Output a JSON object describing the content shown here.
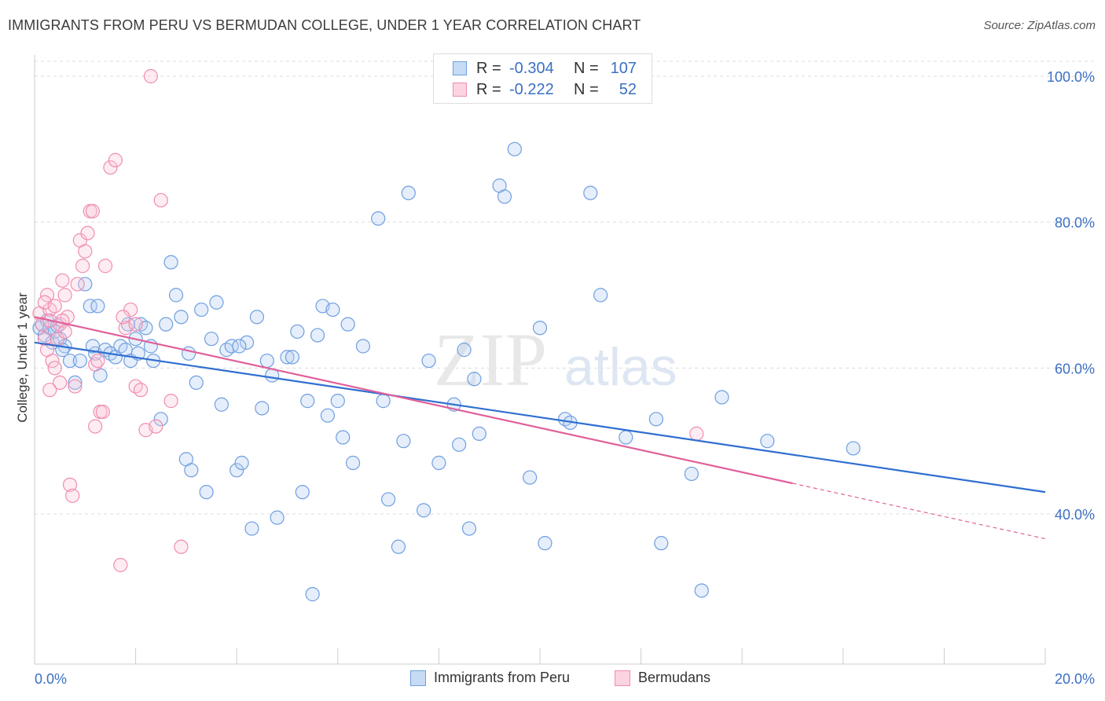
{
  "header": {
    "title": "IMMIGRANTS FROM PERU VS BERMUDAN COLLEGE, UNDER 1 YEAR CORRELATION CHART",
    "source": "Source: ZipAtlas.com"
  },
  "watermark": {
    "zip": "ZIP",
    "atlas": "atlas"
  },
  "legend": {
    "rows": [
      {
        "r_label": "R =",
        "r_value": "-0.304",
        "n_label": "N =",
        "n_value": "107",
        "color": "#6f9fe0"
      },
      {
        "r_label": "R =",
        "r_value": "-0.222",
        "n_label": "N =",
        "n_value": "52",
        "color": "#f08db0"
      }
    ]
  },
  "bottom_legend": [
    {
      "label": "Immigrants from Peru",
      "color": "#6f9fe0"
    },
    {
      "label": "Bermudans",
      "color": "#f08db0"
    }
  ],
  "chart_data": {
    "type": "scatter",
    "title": "IMMIGRANTS FROM PERU VS BERMUDAN COLLEGE, UNDER 1 YEAR CORRELATION CHART",
    "xlabel": "",
    "ylabel": "College, Under 1 year",
    "xlim": [
      0,
      20
    ],
    "ylim": [
      22,
      103
    ],
    "x_tick_labels": [
      "0.0%",
      "20.0%"
    ],
    "y_tick_labels": [
      "100.0%",
      "80.0%",
      "60.0%",
      "40.0%"
    ],
    "y_ticks": [
      100,
      80,
      60,
      40
    ],
    "grid": true,
    "legend_position": "top-center",
    "colors": {
      "peru": "#6f9fe0",
      "peru_line": "#2f6fd0",
      "bermudans": "#f08db0",
      "bermudans_line": "#e0609a"
    },
    "series": [
      {
        "name": "Immigrants from Peru",
        "trend": {
          "x": [
            0,
            20
          ],
          "y": [
            63.5,
            43.0
          ]
        },
        "points": [
          [
            0.1,
            65.5
          ],
          [
            0.15,
            66
          ],
          [
            0.2,
            64.5
          ],
          [
            0.25,
            66.5
          ],
          [
            0.3,
            65.5
          ],
          [
            0.35,
            63.5
          ],
          [
            0.4,
            65
          ],
          [
            0.5,
            64
          ],
          [
            0.6,
            63
          ],
          [
            0.7,
            61
          ],
          [
            0.8,
            58
          ],
          [
            0.9,
            61
          ],
          [
            1.0,
            71.5
          ],
          [
            1.1,
            68.5
          ],
          [
            1.2,
            62
          ],
          [
            1.25,
            68.5
          ],
          [
            1.3,
            59
          ],
          [
            1.4,
            62.5
          ],
          [
            1.5,
            62
          ],
          [
            1.6,
            61.5
          ],
          [
            1.7,
            63
          ],
          [
            1.8,
            62.5
          ],
          [
            1.85,
            66
          ],
          [
            1.9,
            61
          ],
          [
            2.0,
            64
          ],
          [
            2.1,
            66
          ],
          [
            2.2,
            65.5
          ],
          [
            2.3,
            63
          ],
          [
            2.35,
            61
          ],
          [
            2.5,
            53
          ],
          [
            2.6,
            66
          ],
          [
            2.7,
            74.5
          ],
          [
            2.8,
            70
          ],
          [
            2.9,
            67
          ],
          [
            3.0,
            47.5
          ],
          [
            3.1,
            46
          ],
          [
            3.2,
            58
          ],
          [
            3.3,
            68
          ],
          [
            3.4,
            43
          ],
          [
            3.5,
            64
          ],
          [
            3.6,
            69
          ],
          [
            3.7,
            55
          ],
          [
            3.8,
            62.5
          ],
          [
            3.9,
            63
          ],
          [
            4.0,
            46
          ],
          [
            4.1,
            47
          ],
          [
            4.2,
            63.5
          ],
          [
            4.3,
            38
          ],
          [
            4.4,
            67
          ],
          [
            4.5,
            54.5
          ],
          [
            4.6,
            61
          ],
          [
            4.7,
            59
          ],
          [
            4.8,
            39.5
          ],
          [
            5.0,
            61.5
          ],
          [
            5.1,
            61.5
          ],
          [
            5.2,
            65
          ],
          [
            5.3,
            43
          ],
          [
            5.4,
            55.5
          ],
          [
            5.5,
            29
          ],
          [
            5.6,
            64.5
          ],
          [
            5.7,
            68.5
          ],
          [
            5.8,
            53.5
          ],
          [
            5.9,
            68
          ],
          [
            6.0,
            55.5
          ],
          [
            6.1,
            50.5
          ],
          [
            6.2,
            66
          ],
          [
            6.3,
            47
          ],
          [
            6.5,
            63
          ],
          [
            6.8,
            80.5
          ],
          [
            6.9,
            55.5
          ],
          [
            7.0,
            42
          ],
          [
            7.2,
            35.5
          ],
          [
            7.3,
            50
          ],
          [
            7.4,
            84
          ],
          [
            7.7,
            40.5
          ],
          [
            7.8,
            61
          ],
          [
            8.0,
            47
          ],
          [
            8.3,
            55
          ],
          [
            8.4,
            49.5
          ],
          [
            8.5,
            62.5
          ],
          [
            8.6,
            38
          ],
          [
            8.7,
            58.5
          ],
          [
            8.8,
            51
          ],
          [
            9.2,
            85
          ],
          [
            9.3,
            83.5
          ],
          [
            9.5,
            90
          ],
          [
            9.8,
            45
          ],
          [
            10.0,
            65.5
          ],
          [
            10.1,
            36
          ],
          [
            10.5,
            53
          ],
          [
            10.6,
            52.5
          ],
          [
            11.0,
            84
          ],
          [
            11.2,
            70
          ],
          [
            11.7,
            50.5
          ],
          [
            12.3,
            53
          ],
          [
            12.4,
            36
          ],
          [
            13.0,
            45.5
          ],
          [
            13.2,
            29.5
          ],
          [
            13.6,
            56
          ],
          [
            14.5,
            50
          ],
          [
            16.2,
            49
          ],
          [
            0.45,
            65.8
          ],
          [
            0.55,
            62.5
          ],
          [
            1.15,
            63
          ],
          [
            2.05,
            62
          ],
          [
            3.05,
            62
          ],
          [
            4.05,
            63
          ]
        ]
      },
      {
        "name": "Bermudans",
        "trend": {
          "x": [
            0,
            15
          ],
          "y": [
            67.0,
            44.2
          ]
        },
        "trend_dashed": {
          "x": [
            15,
            20
          ],
          "y": [
            44.2,
            36.6
          ]
        },
        "points": [
          [
            0.1,
            67.5
          ],
          [
            0.15,
            66
          ],
          [
            0.2,
            64
          ],
          [
            0.25,
            70
          ],
          [
            0.3,
            68
          ],
          [
            0.35,
            61
          ],
          [
            0.4,
            60
          ],
          [
            0.45,
            64
          ],
          [
            0.5,
            66
          ],
          [
            0.55,
            72
          ],
          [
            0.6,
            70
          ],
          [
            0.65,
            67
          ],
          [
            0.7,
            44
          ],
          [
            0.75,
            42.5
          ],
          [
            0.8,
            57.5
          ],
          [
            0.85,
            71.5
          ],
          [
            0.9,
            77.5
          ],
          [
            0.95,
            74
          ],
          [
            1.0,
            76
          ],
          [
            1.05,
            78.5
          ],
          [
            1.1,
            81.5
          ],
          [
            1.15,
            81.5
          ],
          [
            1.2,
            60.5
          ],
          [
            1.25,
            61
          ],
          [
            1.3,
            54
          ],
          [
            1.35,
            54
          ],
          [
            1.4,
            74
          ],
          [
            1.5,
            87.5
          ],
          [
            1.6,
            88.5
          ],
          [
            1.7,
            33
          ],
          [
            1.8,
            65.5
          ],
          [
            1.9,
            68
          ],
          [
            2.0,
            57.5
          ],
          [
            2.1,
            57
          ],
          [
            2.2,
            51.5
          ],
          [
            2.3,
            100
          ],
          [
            2.4,
            52
          ],
          [
            2.5,
            83
          ],
          [
            2.7,
            55.5
          ],
          [
            2.9,
            35.5
          ],
          [
            0.2,
            69
          ],
          [
            0.3,
            66.5
          ],
          [
            0.4,
            68.5
          ],
          [
            0.5,
            58
          ],
          [
            0.55,
            66.5
          ],
          [
            1.2,
            52
          ],
          [
            0.6,
            65
          ],
          [
            0.25,
            62.5
          ],
          [
            0.3,
            57
          ],
          [
            1.75,
            67
          ],
          [
            2.0,
            66
          ],
          [
            13.1,
            51
          ]
        ]
      }
    ]
  }
}
